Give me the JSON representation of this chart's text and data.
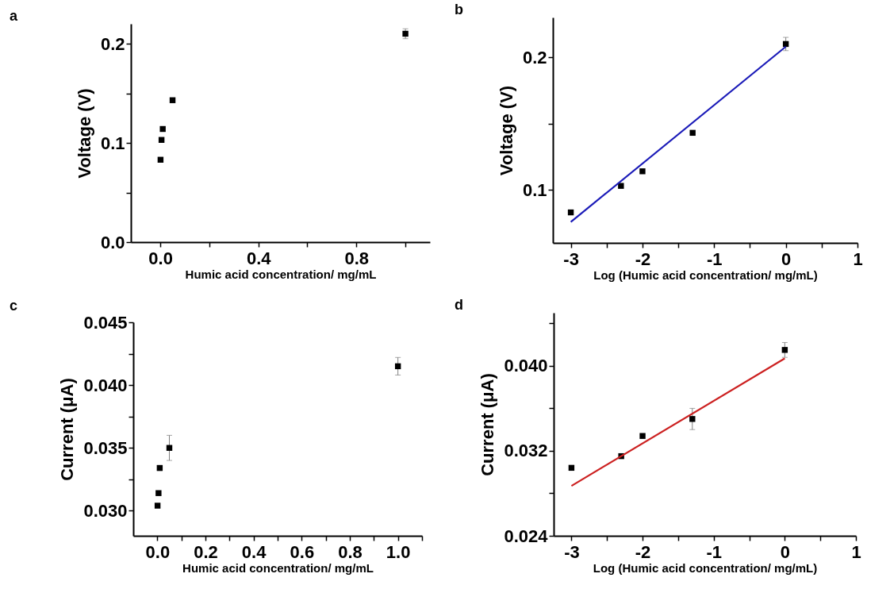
{
  "chart_data": [
    {
      "type": "scatter",
      "title": "a",
      "xlabel": "Humic acid concentration/ mg/mL",
      "ylabel": "Voltage (V)",
      "xlim": [
        -0.12,
        1.1
      ],
      "ylim": [
        0,
        0.22
      ],
      "xticks": [
        {
          "value": 0,
          "label": "0.0"
        },
        {
          "value": 0.2,
          "label": null
        },
        0.4,
        {
          "value": 0.6,
          "label": null
        },
        0.8,
        {
          "value": 1.0,
          "label": null
        }
      ],
      "yticks": [
        {
          "value": 0,
          "label": "0.0"
        },
        {
          "value": 0.05,
          "label": null
        },
        0.1,
        {
          "value": 0.15,
          "label": null
        },
        0.2
      ],
      "grid": false,
      "series": [
        {
          "type": "scatter",
          "marker": "square",
          "color": "#000000",
          "x": [
            0.001,
            0.005,
            0.01,
            0.05,
            1
          ],
          "values": [
            0.083,
            0.103,
            0.114,
            0.143,
            0.21
          ],
          "errors": [
            null,
            null,
            null,
            null,
            0.005
          ]
        }
      ]
    },
    {
      "type": "scatter",
      "title": "b",
      "xlabel": "Log (Humic acid concentration/ mg/mL)",
      "ylabel": "Voltage (V)",
      "xlim": [
        -3.25,
        1
      ],
      "ylim": [
        0.06,
        0.23
      ],
      "xticks": [
        -3,
        {
          "value": -2.5,
          "label": null
        },
        -2,
        {
          "value": -1.5,
          "label": null
        },
        -1,
        {
          "value": -0.5,
          "label": null
        },
        0,
        {
          "value": 0.5,
          "label": null
        },
        1
      ],
      "yticks": [
        0.1,
        {
          "value": 0.15,
          "label": null
        },
        0.2
      ],
      "grid": false,
      "series": [
        {
          "type": "scatter",
          "marker": "square",
          "color": "#000000",
          "x": [
            -3,
            -2.3,
            -2,
            -1.3,
            0
          ],
          "values": [
            0.083,
            0.103,
            0.114,
            0.143,
            0.21
          ],
          "errors": [
            null,
            null,
            null,
            null,
            0.005
          ]
        },
        {
          "type": "line",
          "color": "#1a1ab8",
          "x": [
            -3,
            0
          ],
          "values": [
            0.0758,
            0.208
          ]
        }
      ]
    },
    {
      "type": "scatter",
      "title": "c",
      "xlabel": "Humic acid concentration/ mg/mL",
      "ylabel": "Current (μA)",
      "xlim": [
        -0.1,
        1.1
      ],
      "ylim": [
        0.028,
        0.045
      ],
      "xticks": [
        {
          "value": 0,
          "label": "0.0"
        },
        {
          "value": 0.1,
          "label": null
        },
        0.2,
        {
          "value": 0.3,
          "label": null
        },
        0.4,
        {
          "value": 0.5,
          "label": null
        },
        0.6,
        {
          "value": 0.7,
          "label": null
        },
        0.8,
        {
          "value": 0.9,
          "label": null
        },
        {
          "value": 1,
          "label": "1.0"
        },
        {
          "value": 1.1,
          "label": null
        }
      ],
      "yticks": [
        {
          "value": 0.03,
          "label": "0.030"
        },
        {
          "value": 0.0325,
          "label": null
        },
        0.035,
        {
          "value": 0.0375,
          "label": null
        },
        {
          "value": 0.04,
          "label": "0.040"
        },
        {
          "value": 0.0425,
          "label": null
        },
        0.045
      ],
      "grid": false,
      "series": [
        {
          "type": "scatter",
          "marker": "square",
          "color": "#000000",
          "x": [
            0.001,
            0.005,
            0.01,
            0.05,
            1
          ],
          "values": [
            0.0304,
            0.0314,
            0.0334,
            0.035,
            0.0415
          ],
          "errors": [
            null,
            null,
            0.0002,
            0.001,
            0.0007
          ]
        }
      ]
    },
    {
      "type": "scatter",
      "title": "d",
      "xlabel": "Log (Humic acid concentration/ mg/mL)",
      "ylabel": "Current (μA)",
      "xlim": [
        -3.25,
        1
      ],
      "ylim": [
        0.024,
        0.045
      ],
      "xticks": [
        -3,
        {
          "value": -2.5,
          "label": null
        },
        -2,
        {
          "value": -1.5,
          "label": null
        },
        -1,
        {
          "value": -0.5,
          "label": null
        },
        0,
        {
          "value": 0.5,
          "label": null
        },
        1
      ],
      "yticks": [
        {
          "value": 0.024,
          "label": "0.024"
        },
        {
          "value": 0.028,
          "label": null
        },
        {
          "value": 0.032,
          "label": "0.032"
        },
        {
          "value": 0.036,
          "label": null
        },
        {
          "value": 0.04,
          "label": "0.040"
        },
        {
          "value": 0.044,
          "label": null
        }
      ],
      "grid": false,
      "series": [
        {
          "type": "scatter",
          "marker": "square",
          "color": "#000000",
          "x": [
            -3,
            -2.3,
            -2,
            -1.3,
            0
          ],
          "values": [
            0.0304,
            0.0315,
            0.0334,
            0.035,
            0.0415
          ],
          "errors": [
            null,
            null,
            null,
            0.001,
            0.0007
          ]
        },
        {
          "type": "line",
          "color": "#cc2020",
          "x": [
            -3,
            0
          ],
          "values": [
            0.0287,
            0.0407
          ]
        }
      ]
    }
  ]
}
